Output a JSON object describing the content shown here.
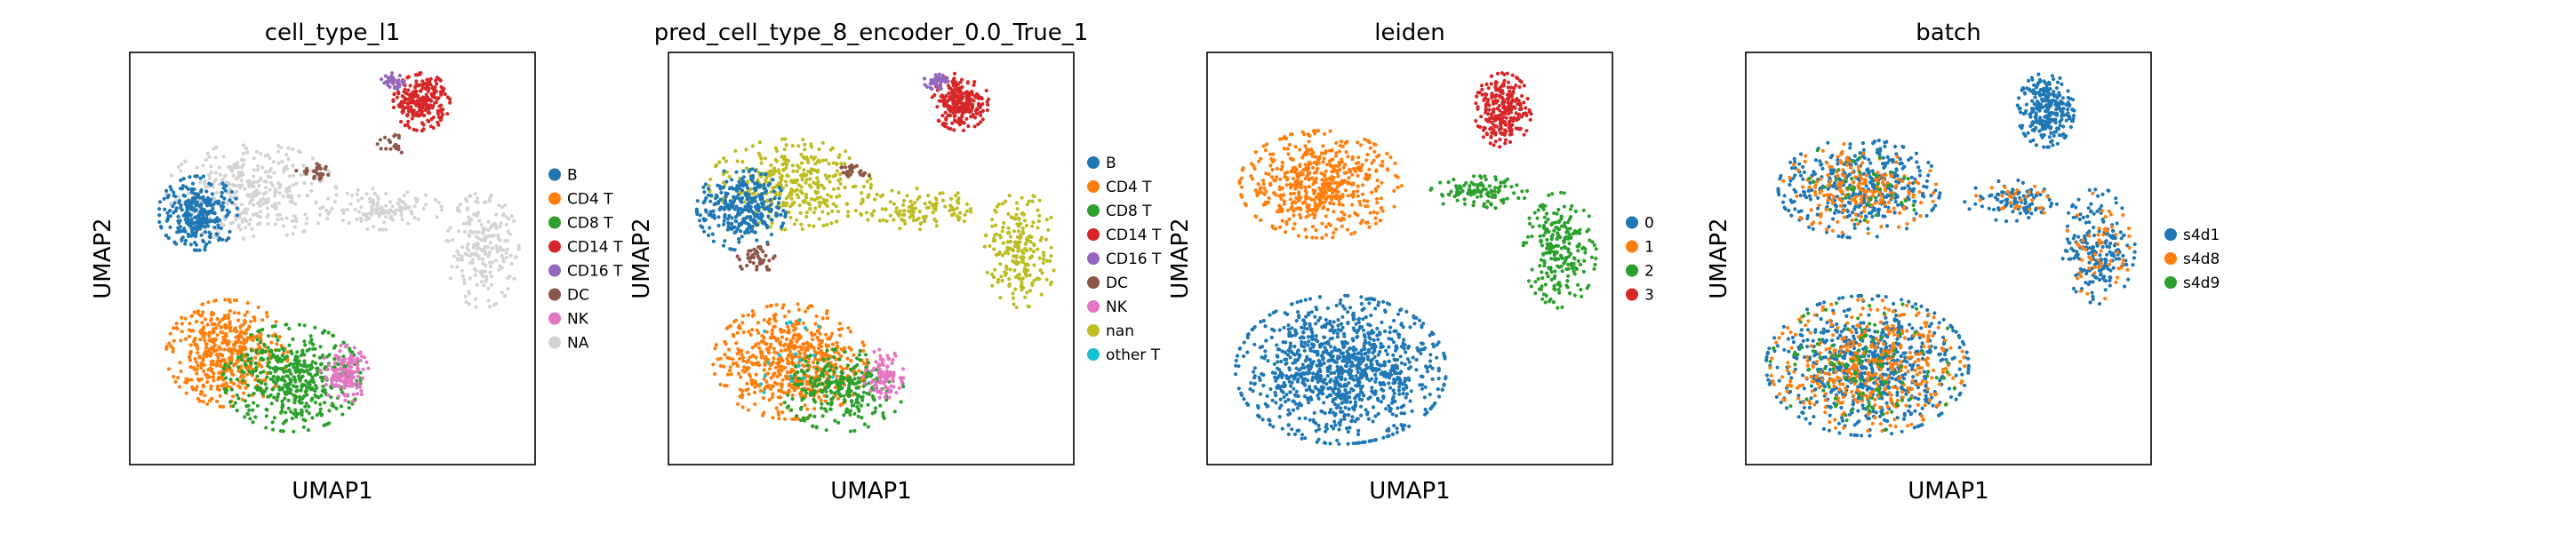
{
  "chart_data": [
    {
      "type": "scatter",
      "title": "cell_type_l1",
      "xlabel": "UMAP1",
      "ylabel": "UMAP2",
      "grid": false,
      "legend_position": "right",
      "legend": [
        {
          "label": "B",
          "color": "#1f77b4"
        },
        {
          "label": "CD4 T",
          "color": "#ff7f0e"
        },
        {
          "label": "CD8 T",
          "color": "#2ca02c"
        },
        {
          "label": "CD14 T",
          "color": "#d62728"
        },
        {
          "label": "CD16 T",
          "color": "#9467bd"
        },
        {
          "label": "DC",
          "color": "#8c564b"
        },
        {
          "label": "NK",
          "color": "#e377c2"
        },
        {
          "label": "NA",
          "color": "#d3d3d3"
        }
      ],
      "clusters": [
        {
          "label": "NA",
          "cx": 0.3,
          "cy": 0.66,
          "rx": 0.21,
          "ry": 0.12,
          "n": 360
        },
        {
          "label": "NA",
          "cx": 0.62,
          "cy": 0.62,
          "rx": 0.15,
          "ry": 0.05,
          "n": 120
        },
        {
          "label": "NA",
          "cx": 0.87,
          "cy": 0.52,
          "rx": 0.09,
          "ry": 0.14,
          "n": 220
        },
        {
          "label": "B",
          "cx": 0.17,
          "cy": 0.61,
          "rx": 0.1,
          "ry": 0.09,
          "n": 300
        },
        {
          "label": "CD14 T",
          "cx": 0.72,
          "cy": 0.88,
          "rx": 0.07,
          "ry": 0.07,
          "n": 240
        },
        {
          "label": "CD16 T",
          "cx": 0.65,
          "cy": 0.93,
          "rx": 0.03,
          "ry": 0.02,
          "n": 40
        },
        {
          "label": "DC",
          "cx": 0.46,
          "cy": 0.71,
          "rx": 0.05,
          "ry": 0.02,
          "n": 25
        },
        {
          "label": "DC",
          "cx": 0.65,
          "cy": 0.77,
          "rx": 0.04,
          "ry": 0.03,
          "n": 20
        },
        {
          "label": "CD4 T",
          "cx": 0.24,
          "cy": 0.27,
          "rx": 0.15,
          "ry": 0.13,
          "n": 480
        },
        {
          "label": "CD8 T",
          "cx": 0.4,
          "cy": 0.21,
          "rx": 0.17,
          "ry": 0.13,
          "n": 480
        },
        {
          "label": "NK",
          "cx": 0.53,
          "cy": 0.22,
          "rx": 0.06,
          "ry": 0.07,
          "n": 140
        }
      ]
    },
    {
      "type": "scatter",
      "title": "pred_cell_type_8_encoder_0.0_True_1",
      "xlabel": "UMAP1",
      "ylabel": "UMAP2",
      "grid": false,
      "legend_position": "right",
      "legend": [
        {
          "label": "B",
          "color": "#1f77b4"
        },
        {
          "label": "CD4 T",
          "color": "#ff7f0e"
        },
        {
          "label": "CD8 T",
          "color": "#2ca02c"
        },
        {
          "label": "CD14 T",
          "color": "#d62728"
        },
        {
          "label": "CD16 T",
          "color": "#9467bd"
        },
        {
          "label": "DC",
          "color": "#8c564b"
        },
        {
          "label": "NK",
          "color": "#e377c2"
        },
        {
          "label": "nan",
          "color": "#bcbd22"
        },
        {
          "label": "other T",
          "color": "#17becf"
        }
      ],
      "clusters": [
        {
          "label": "nan",
          "cx": 0.3,
          "cy": 0.68,
          "rx": 0.2,
          "ry": 0.11,
          "n": 360
        },
        {
          "label": "nan",
          "cx": 0.62,
          "cy": 0.62,
          "rx": 0.15,
          "ry": 0.05,
          "n": 120
        },
        {
          "label": "nan",
          "cx": 0.87,
          "cy": 0.52,
          "rx": 0.09,
          "ry": 0.14,
          "n": 220
        },
        {
          "label": "B",
          "cx": 0.18,
          "cy": 0.62,
          "rx": 0.11,
          "ry": 0.1,
          "n": 320
        },
        {
          "label": "CD14 T",
          "cx": 0.72,
          "cy": 0.88,
          "rx": 0.07,
          "ry": 0.07,
          "n": 240
        },
        {
          "label": "CD16 T",
          "cx": 0.66,
          "cy": 0.93,
          "rx": 0.03,
          "ry": 0.02,
          "n": 40
        },
        {
          "label": "DC",
          "cx": 0.46,
          "cy": 0.71,
          "rx": 0.04,
          "ry": 0.02,
          "n": 25
        },
        {
          "label": "DC",
          "cx": 0.22,
          "cy": 0.5,
          "rx": 0.05,
          "ry": 0.04,
          "n": 40
        },
        {
          "label": "CD4 T",
          "cx": 0.3,
          "cy": 0.25,
          "rx": 0.19,
          "ry": 0.14,
          "n": 620
        },
        {
          "label": "CD8 T",
          "cx": 0.43,
          "cy": 0.18,
          "rx": 0.15,
          "ry": 0.1,
          "n": 280
        },
        {
          "label": "NK",
          "cx": 0.53,
          "cy": 0.22,
          "rx": 0.05,
          "ry": 0.06,
          "n": 90
        },
        {
          "label": "other T",
          "cx": 0.3,
          "cy": 0.26,
          "rx": 0.12,
          "ry": 0.1,
          "n": 20
        }
      ]
    },
    {
      "type": "scatter",
      "title": "leiden",
      "xlabel": "UMAP1",
      "ylabel": "UMAP2",
      "grid": false,
      "legend_position": "right",
      "legend": [
        {
          "label": "0",
          "color": "#1f77b4"
        },
        {
          "label": "1",
          "color": "#ff7f0e"
        },
        {
          "label": "2",
          "color": "#2ca02c"
        },
        {
          "label": "3",
          "color": "#d62728"
        }
      ],
      "clusters": [
        {
          "label": "0",
          "cx": 0.33,
          "cy": 0.23,
          "rx": 0.26,
          "ry": 0.18,
          "n": 1100
        },
        {
          "label": "1",
          "cx": 0.28,
          "cy": 0.68,
          "rx": 0.2,
          "ry": 0.13,
          "n": 560
        },
        {
          "label": "2",
          "cx": 0.67,
          "cy": 0.66,
          "rx": 0.12,
          "ry": 0.04,
          "n": 110
        },
        {
          "label": "2",
          "cx": 0.87,
          "cy": 0.52,
          "rx": 0.09,
          "ry": 0.14,
          "n": 240
        },
        {
          "label": "3",
          "cx": 0.73,
          "cy": 0.86,
          "rx": 0.07,
          "ry": 0.09,
          "n": 260
        }
      ]
    },
    {
      "type": "scatter",
      "title": "batch",
      "xlabel": "UMAP1",
      "ylabel": "UMAP2",
      "grid": false,
      "legend_position": "right",
      "legend": [
        {
          "label": "s4d1",
          "color": "#1f77b4"
        },
        {
          "label": "s4d8",
          "color": "#ff7f0e"
        },
        {
          "label": "s4d9",
          "color": "#2ca02c"
        }
      ],
      "clusters": [
        {
          "label": "s4d1",
          "cx": 0.3,
          "cy": 0.24,
          "rx": 0.25,
          "ry": 0.17,
          "n": 680
        },
        {
          "label": "s4d8",
          "cx": 0.3,
          "cy": 0.24,
          "rx": 0.24,
          "ry": 0.16,
          "n": 400
        },
        {
          "label": "s4d9",
          "cx": 0.3,
          "cy": 0.24,
          "rx": 0.24,
          "ry": 0.16,
          "n": 120
        },
        {
          "label": "s4d1",
          "cx": 0.28,
          "cy": 0.67,
          "rx": 0.2,
          "ry": 0.12,
          "n": 400
        },
        {
          "label": "s4d8",
          "cx": 0.28,
          "cy": 0.67,
          "rx": 0.19,
          "ry": 0.11,
          "n": 200
        },
        {
          "label": "s4d9",
          "cx": 0.28,
          "cy": 0.67,
          "rx": 0.19,
          "ry": 0.11,
          "n": 40
        },
        {
          "label": "s4d1",
          "cx": 0.74,
          "cy": 0.86,
          "rx": 0.07,
          "ry": 0.09,
          "n": 260
        },
        {
          "label": "s4d1",
          "cx": 0.66,
          "cy": 0.64,
          "rx": 0.12,
          "ry": 0.05,
          "n": 90
        },
        {
          "label": "s4d8",
          "cx": 0.66,
          "cy": 0.64,
          "rx": 0.11,
          "ry": 0.04,
          "n": 30
        },
        {
          "label": "s4d1",
          "cx": 0.87,
          "cy": 0.53,
          "rx": 0.09,
          "ry": 0.14,
          "n": 200
        },
        {
          "label": "s4d8",
          "cx": 0.87,
          "cy": 0.53,
          "rx": 0.08,
          "ry": 0.13,
          "n": 60
        }
      ]
    }
  ]
}
